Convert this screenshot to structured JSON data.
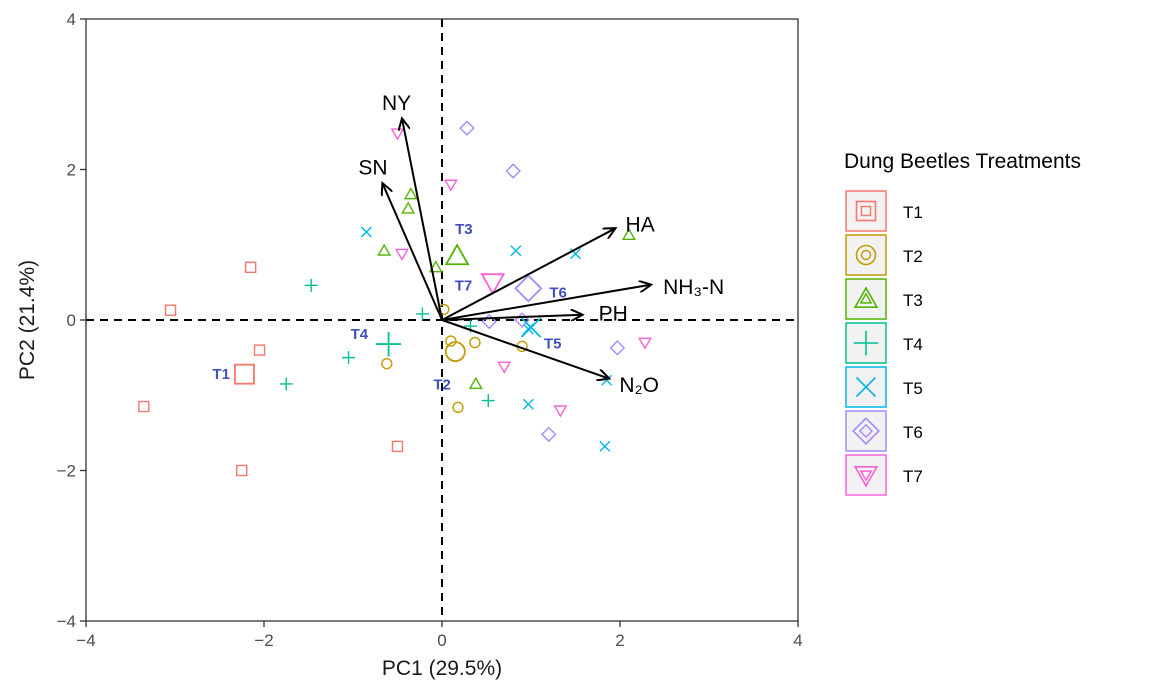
{
  "chart_data": {
    "type": "scatter",
    "subtype": "pca-biplot",
    "xlabel": "PC1 (29.5%)",
    "ylabel": "PC2 (21.4%)",
    "xlim": [
      -4,
      4
    ],
    "ylim": [
      -4,
      4
    ],
    "xticks": [
      -4,
      -2,
      0,
      2,
      4
    ],
    "yticks": [
      -4,
      -2,
      0,
      2,
      4
    ],
    "xtick_labels": [
      "−4",
      "−2",
      "0",
      "2",
      "4"
    ],
    "ytick_labels": [
      "−4",
      "−2",
      "0",
      "2",
      "4"
    ],
    "grid": false,
    "reference_lines": {
      "x": 0,
      "y": 0,
      "style": "dashed"
    },
    "legend": {
      "title": "Dung Beetles Treatments",
      "placement": "right"
    },
    "series": [
      {
        "name": "T1",
        "color": "#F8766D",
        "shape": "square",
        "points": [
          [
            -2.15,
            0.7
          ],
          [
            -3.05,
            0.13
          ],
          [
            -2.05,
            -0.4
          ],
          [
            -3.35,
            -1.15
          ],
          [
            -2.25,
            -2.0
          ],
          [
            -0.5,
            -1.68
          ]
        ],
        "centroid": [
          -2.22,
          -0.72
        ],
        "centroid_label": "T1"
      },
      {
        "name": "T2",
        "color": "#C49A00",
        "shape": "circle",
        "points": [
          [
            0.02,
            0.14
          ],
          [
            0.1,
            -0.28
          ],
          [
            0.37,
            -0.3
          ],
          [
            0.9,
            -0.35
          ],
          [
            -0.62,
            -0.58
          ],
          [
            0.18,
            -1.16
          ]
        ],
        "centroid": [
          0.15,
          -0.42
        ],
        "centroid_label": "T2"
      },
      {
        "name": "T3",
        "color": "#53B400",
        "shape": "triangle",
        "points": [
          [
            -0.35,
            1.67
          ],
          [
            -0.38,
            1.48
          ],
          [
            -0.65,
            0.92
          ],
          [
            -0.07,
            0.7
          ],
          [
            2.1,
            1.13
          ],
          [
            0.38,
            -0.85
          ]
        ],
        "centroid": [
          0.17,
          0.85
        ],
        "centroid_label": "T3"
      },
      {
        "name": "T4",
        "color": "#00C094",
        "shape": "plus",
        "points": [
          [
            -1.47,
            0.46
          ],
          [
            -0.22,
            0.08
          ],
          [
            0.32,
            -0.08
          ],
          [
            -1.05,
            -0.5
          ],
          [
            -1.75,
            -0.85
          ],
          [
            0.52,
            -1.07
          ]
        ],
        "centroid": [
          -0.6,
          -0.32
        ],
        "centroid_label": "T4"
      },
      {
        "name": "T5",
        "color": "#00B6EB",
        "shape": "cross",
        "points": [
          [
            -0.85,
            1.17
          ],
          [
            0.83,
            0.92
          ],
          [
            1.5,
            0.88
          ],
          [
            0.97,
            -0.12
          ],
          [
            1.85,
            -0.8
          ],
          [
            0.97,
            -1.12
          ],
          [
            1.83,
            -1.68
          ]
        ],
        "centroid": [
          1.0,
          -0.1
        ],
        "centroid_label": "T5"
      },
      {
        "name": "T6",
        "color": "#A58AFF",
        "shape": "diamond",
        "points": [
          [
            0.28,
            2.55
          ],
          [
            0.8,
            1.98
          ],
          [
            0.53,
            -0.02
          ],
          [
            0.9,
            0.0
          ],
          [
            1.97,
            -0.37
          ],
          [
            1.2,
            -1.52
          ]
        ],
        "centroid": [
          0.97,
          0.42
        ],
        "centroid_label": "T6"
      },
      {
        "name": "T7",
        "color": "#FB61D7",
        "shape": "triangle-down",
        "points": [
          [
            -0.5,
            2.48
          ],
          [
            0.1,
            1.8
          ],
          [
            -0.45,
            0.88
          ],
          [
            0.7,
            -0.62
          ],
          [
            2.28,
            -0.3
          ],
          [
            1.33,
            -1.2
          ]
        ],
        "centroid": [
          0.57,
          0.5
        ],
        "centroid_label": "T7"
      }
    ],
    "loadings": [
      {
        "name": "NY",
        "x": -0.45,
        "y": 2.68
      },
      {
        "name": "SN",
        "x": -0.67,
        "y": 1.82
      },
      {
        "name": "HA",
        "x": 1.95,
        "y": 1.22
      },
      {
        "name": "NH₃-N",
        "x": 2.35,
        "y": 0.47
      },
      {
        "name": "PH",
        "x": 1.58,
        "y": 0.07
      },
      {
        "name": "N₂O",
        "x": 1.88,
        "y": -0.78
      }
    ]
  }
}
